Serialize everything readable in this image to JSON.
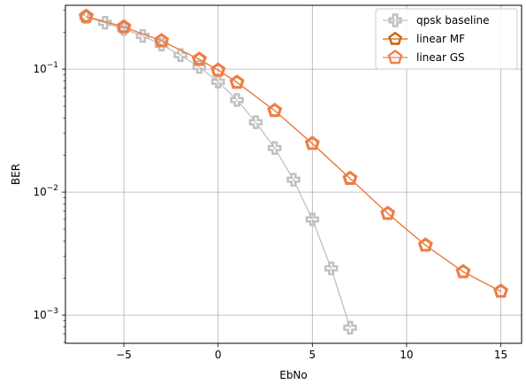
{
  "chart_data": {
    "type": "line",
    "title": "",
    "xlabel": "EbNo",
    "ylabel": "BER",
    "xlim": [
      -8.1,
      16.1
    ],
    "ylim": [
      0.00059,
      0.33
    ],
    "yscale": "log",
    "grid": true,
    "legend_position": "top-right",
    "xticks": [
      {
        "value": -5,
        "label": "−5"
      },
      {
        "value": 0,
        "label": "0"
      },
      {
        "value": 5,
        "label": "5"
      },
      {
        "value": 10,
        "label": "10"
      },
      {
        "value": 15,
        "label": "15"
      }
    ],
    "yticks": [
      {
        "value": 0.001,
        "base": "10",
        "exp": "−3"
      },
      {
        "value": 0.01,
        "base": "10",
        "exp": "−2"
      },
      {
        "value": 0.1,
        "base": "10",
        "exp": "−1"
      }
    ],
    "series": [
      {
        "name": "qpsk baseline",
        "color": "#c0c0c0",
        "marker": "plus",
        "x": [
          -7,
          -6,
          -5,
          -4,
          -3,
          -2,
          -1,
          0,
          1,
          2,
          3,
          4,
          5,
          6,
          7
        ],
        "y": [
          0.265,
          0.238,
          0.212,
          0.186,
          0.158,
          0.13,
          0.104,
          0.079,
          0.056,
          0.037,
          0.0228,
          0.0126,
          0.006,
          0.0024,
          0.00079
        ]
      },
      {
        "name": "linear MF",
        "color": "#d45f00",
        "marker": "pentagon",
        "x": [
          -7,
          -5,
          -3,
          -1,
          0,
          1,
          3,
          5,
          7,
          9,
          11,
          13,
          15
        ],
        "y": [
          0.268,
          0.22,
          0.17,
          0.12,
          0.098,
          0.078,
          0.046,
          0.0248,
          0.0129,
          0.0067,
          0.0037,
          0.00225,
          0.00156
        ]
      },
      {
        "name": "linear GS",
        "color": "#f07f4a",
        "marker": "pentagon",
        "x": [
          -7,
          -5,
          -3,
          -1,
          0,
          1,
          3,
          5,
          7,
          9,
          11,
          13,
          15
        ],
        "y": [
          0.268,
          0.22,
          0.17,
          0.12,
          0.098,
          0.078,
          0.046,
          0.0248,
          0.0129,
          0.0067,
          0.0037,
          0.00225,
          0.00156
        ]
      }
    ]
  }
}
